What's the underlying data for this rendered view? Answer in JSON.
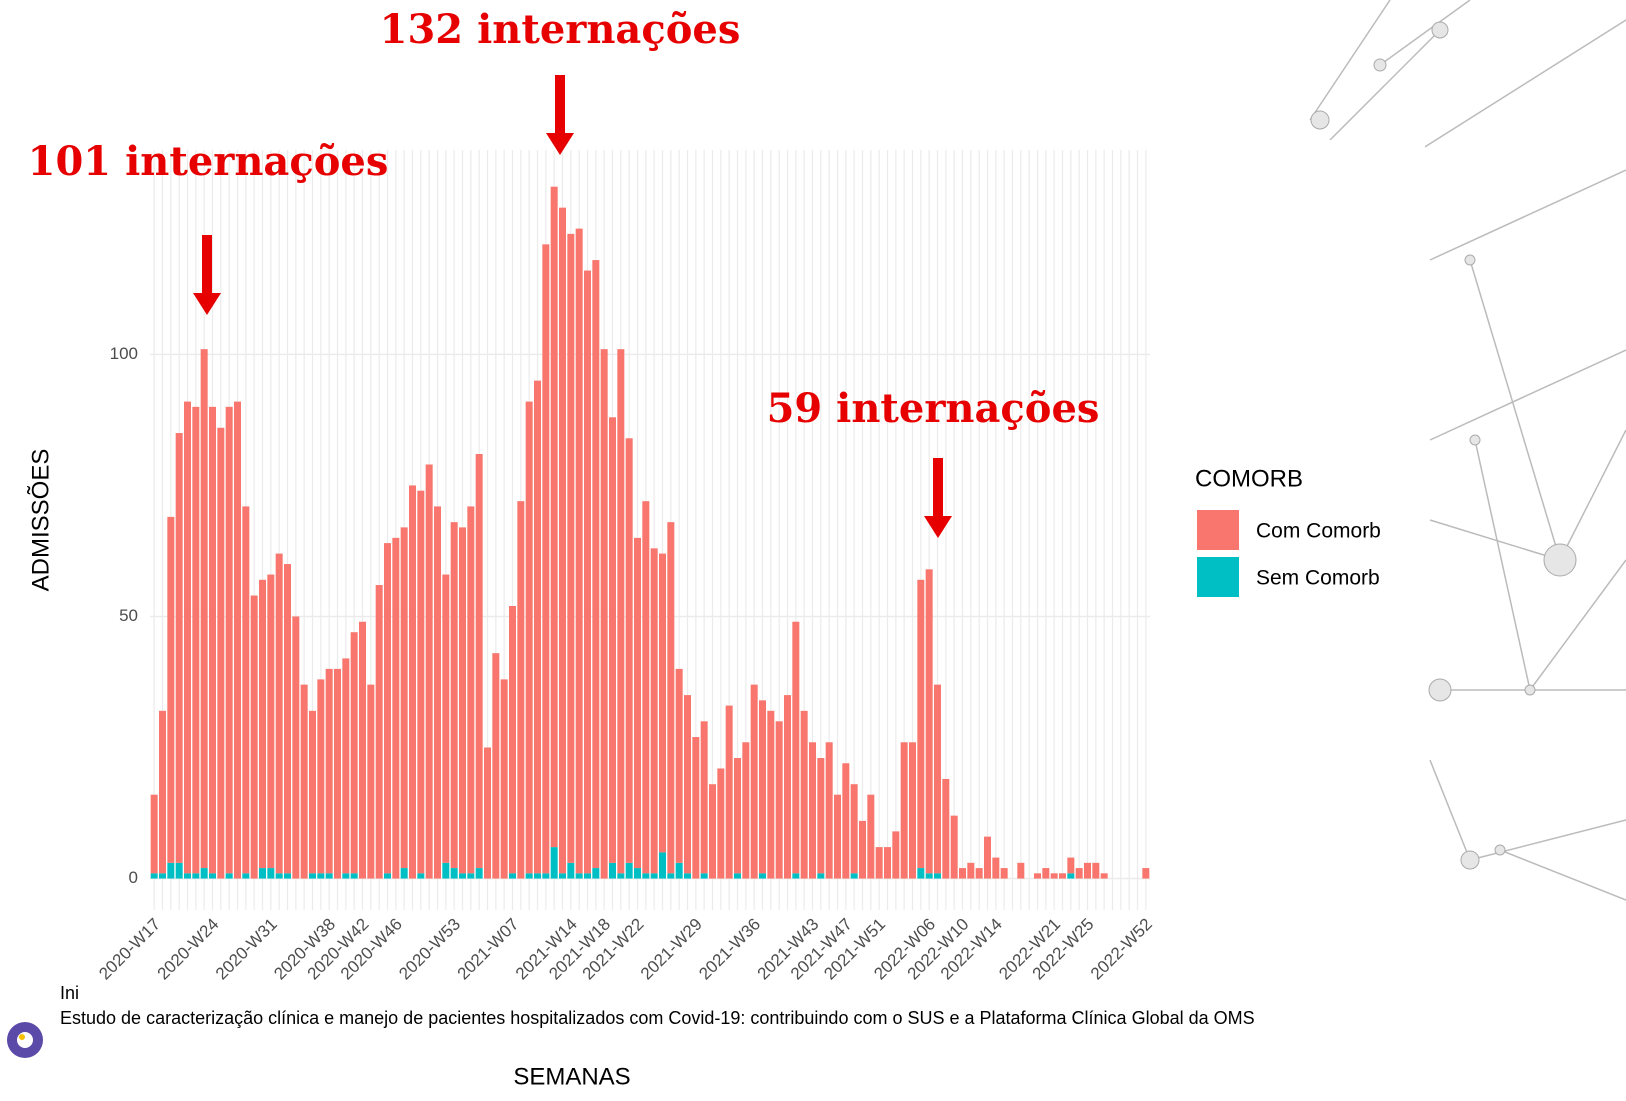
{
  "chart_data": {
    "type": "bar",
    "stacked": true,
    "annotations": [
      "132 internações",
      "101 internações",
      "59 internações"
    ],
    "xlabel": "SEMANAS",
    "ylabel": "ADMISSÕES",
    "legend_title": "COMORB",
    "categories": [
      "2020-W17",
      null,
      null,
      null,
      null,
      null,
      null,
      "2020-W24",
      null,
      null,
      null,
      null,
      null,
      null,
      "2020-W31",
      null,
      null,
      null,
      null,
      null,
      null,
      "2020-W38",
      null,
      null,
      null,
      "2020-W42",
      null,
      null,
      null,
      "2020-W46",
      null,
      null,
      null,
      null,
      null,
      null,
      "2020-W53",
      null,
      null,
      null,
      null,
      null,
      null,
      "2021-W07",
      null,
      null,
      null,
      null,
      null,
      null,
      "2021-W14",
      null,
      null,
      null,
      "2021-W18",
      null,
      null,
      null,
      "2021-W22",
      null,
      null,
      null,
      null,
      null,
      null,
      "2021-W29",
      null,
      null,
      null,
      null,
      null,
      null,
      "2021-W36",
      null,
      null,
      null,
      null,
      null,
      null,
      "2021-W43",
      null,
      null,
      null,
      "2021-W47",
      null,
      null,
      null,
      "2021-W51",
      null,
      null,
      null,
      null,
      null,
      "2022-W06",
      null,
      null,
      null,
      "2022-W10",
      null,
      null,
      null,
      "2022-W14",
      null,
      null,
      null,
      null,
      null,
      null,
      "2022-W21",
      null,
      null,
      null,
      "2022-W25",
      null,
      null,
      null,
      null,
      null,
      null,
      "2022-W52"
    ],
    "series": [
      {
        "name": "Com Comorb",
        "color": "#f8766d",
        "values": [
          15,
          31,
          66,
          82,
          90,
          89,
          99,
          89,
          86,
          89,
          91,
          70,
          54,
          55,
          56,
          61,
          59,
          50,
          37,
          31,
          37,
          39,
          40,
          41,
          46,
          49,
          37,
          56,
          63,
          65,
          65,
          75,
          73,
          79,
          71,
          55,
          66,
          66,
          70,
          79,
          25,
          43,
          38,
          51,
          72,
          90,
          94,
          120,
          126,
          127,
          120,
          123,
          115,
          116,
          101,
          85,
          100,
          81,
          63,
          71,
          62,
          57,
          67,
          37,
          34,
          27,
          29,
          18,
          21,
          33,
          22,
          26,
          37,
          33,
          32,
          30,
          35,
          48,
          32,
          26,
          22,
          26,
          16,
          22,
          17,
          11,
          16,
          6,
          6,
          9,
          26,
          26,
          55,
          58,
          36,
          19,
          12,
          2,
          3,
          2,
          8,
          4,
          2,
          0,
          3,
          0,
          1,
          2,
          1,
          1,
          3,
          2,
          3,
          3,
          1,
          0,
          0,
          0,
          0,
          2
        ]
      },
      {
        "name": "Sem Comorb",
        "color": "#00bfc4",
        "values": [
          1,
          1,
          3,
          3,
          1,
          1,
          2,
          1,
          0,
          1,
          0,
          1,
          0,
          2,
          2,
          1,
          1,
          0,
          0,
          1,
          1,
          1,
          0,
          1,
          1,
          0,
          0,
          0,
          1,
          0,
          2,
          0,
          1,
          0,
          0,
          3,
          2,
          1,
          1,
          2,
          0,
          0,
          0,
          1,
          0,
          1,
          1,
          1,
          6,
          1,
          3,
          1,
          1,
          2,
          0,
          3,
          1,
          3,
          2,
          1,
          1,
          5,
          1,
          3,
          1,
          0,
          1,
          0,
          0,
          0,
          1,
          0,
          0,
          1,
          0,
          0,
          0,
          1,
          0,
          0,
          1,
          0,
          0,
          0,
          1,
          0,
          0,
          0,
          0,
          0,
          0,
          0,
          2,
          1,
          1,
          0,
          0,
          0,
          0,
          0,
          0,
          0,
          0,
          0,
          0,
          0,
          0,
          0,
          0,
          0,
          1,
          0,
          0,
          0,
          0,
          0,
          0,
          0,
          0,
          0
        ]
      }
    ],
    "ylim": [
      -6,
      139
    ],
    "yticks": [
      0,
      50,
      100
    ],
    "grid": true
  },
  "footer": {
    "line1": "Ini",
    "line2": "Estudo de caracterização clínica e manejo de pacientes hospitalizados com Covid-19: contribuindo com o SUS e a Plataforma Clínica Global da OMS"
  }
}
